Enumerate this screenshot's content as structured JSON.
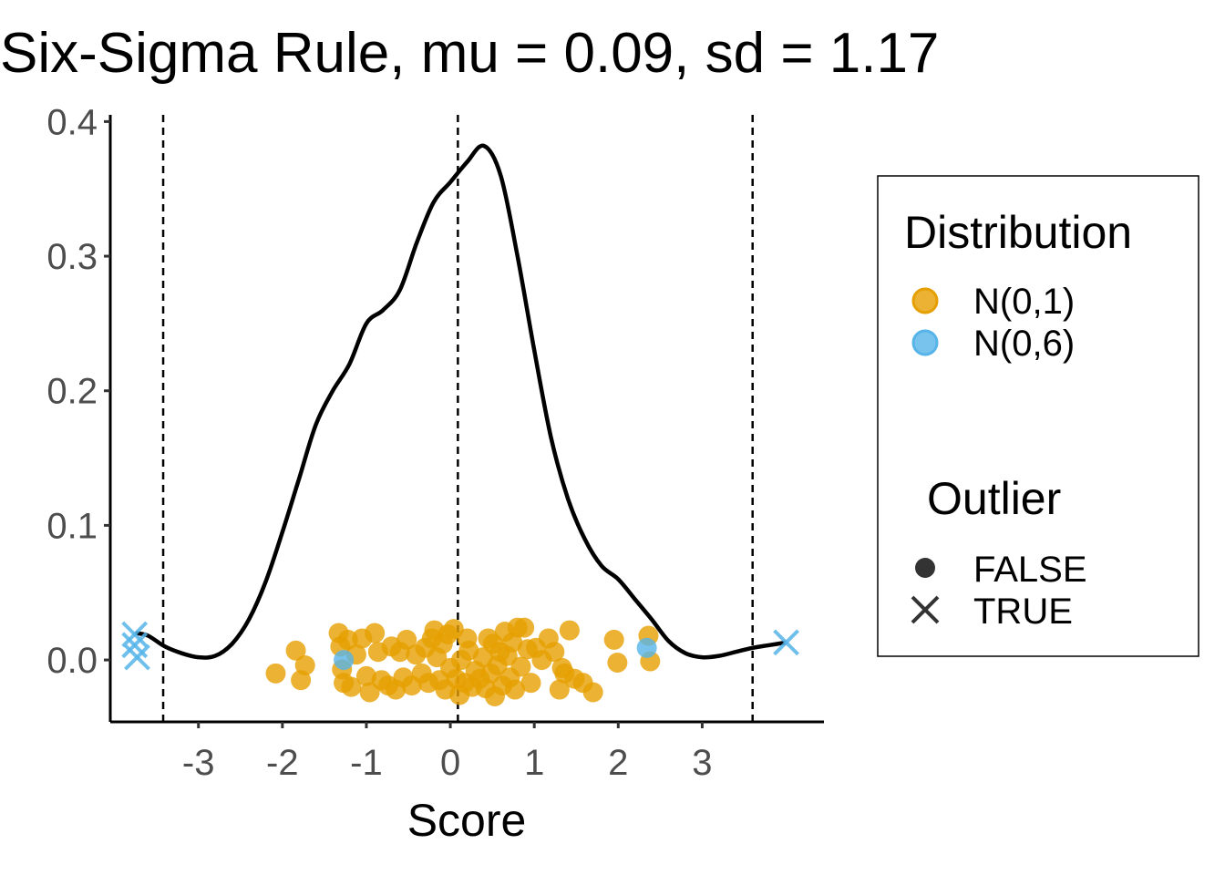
{
  "chart_data": {
    "type": "scatter",
    "title": "Six-Sigma Rule, mu = 0.09, sd = 1.17",
    "xlabel": "Score",
    "ylabel": "",
    "xlim": [
      -4.05,
      4.45
    ],
    "ylim": [
      -0.046,
      0.405
    ],
    "x_ticks": [
      -3,
      -2,
      -1,
      0,
      1,
      2,
      3
    ],
    "y_ticks": [
      0.0,
      0.1,
      0.2,
      0.3,
      0.4
    ],
    "y_tick_labels": [
      "0.0",
      "0.1",
      "0.2",
      "0.3",
      "0.4"
    ],
    "grid": false,
    "vlines": [
      -3.42,
      0.09,
      3.6
    ],
    "density_curve": {
      "x": [
        -3.75,
        -3.6,
        -3.4,
        -3.2,
        -3.0,
        -2.8,
        -2.6,
        -2.4,
        -2.2,
        -2.0,
        -1.8,
        -1.6,
        -1.4,
        -1.2,
        -1.0,
        -0.8,
        -0.6,
        -0.4,
        -0.2,
        0.0,
        0.2,
        0.4,
        0.6,
        0.8,
        1.0,
        1.2,
        1.4,
        1.6,
        1.8,
        2.0,
        2.2,
        2.4,
        2.6,
        2.8,
        3.0,
        3.2,
        3.4,
        3.6,
        3.8,
        4.0
      ],
      "y": [
        0.02,
        0.018,
        0.01,
        0.005,
        0.002,
        0.003,
        0.012,
        0.03,
        0.058,
        0.095,
        0.135,
        0.175,
        0.2,
        0.22,
        0.25,
        0.26,
        0.275,
        0.31,
        0.34,
        0.355,
        0.37,
        0.382,
        0.36,
        0.3,
        0.23,
        0.165,
        0.12,
        0.09,
        0.07,
        0.06,
        0.045,
        0.03,
        0.014,
        0.005,
        0.002,
        0.003,
        0.006,
        0.009,
        0.011,
        0.013
      ]
    },
    "series": [
      {
        "name": "N(0,1)",
        "color": "#E69F00",
        "points": [
          {
            "x": -2.08,
            "y": -0.01,
            "outlier": false
          },
          {
            "x": -1.84,
            "y": 0.007,
            "outlier": false
          },
          {
            "x": -1.78,
            "y": -0.015,
            "outlier": false
          },
          {
            "x": -1.73,
            "y": -0.004,
            "outlier": false
          },
          {
            "x": -1.33,
            "y": 0.02,
            "outlier": false
          },
          {
            "x": -1.31,
            "y": 0.01,
            "outlier": false
          },
          {
            "x": -1.29,
            "y": -0.007,
            "outlier": false
          },
          {
            "x": -1.27,
            "y": -0.017,
            "outlier": false
          },
          {
            "x": -1.22,
            "y": 0.015,
            "outlier": false
          },
          {
            "x": -1.18,
            "y": -0.02,
            "outlier": false
          },
          {
            "x": -1.12,
            "y": 0.004,
            "outlier": false
          },
          {
            "x": -1.05,
            "y": 0.016,
            "outlier": false
          },
          {
            "x": -1.0,
            "y": -0.012,
            "outlier": false
          },
          {
            "x": -0.96,
            "y": -0.024,
            "outlier": false
          },
          {
            "x": -0.9,
            "y": 0.02,
            "outlier": false
          },
          {
            "x": -0.86,
            "y": 0.006,
            "outlier": false
          },
          {
            "x": -0.82,
            "y": -0.015,
            "outlier": false
          },
          {
            "x": -0.74,
            "y": -0.019,
            "outlier": false
          },
          {
            "x": -0.7,
            "y": 0.01,
            "outlier": false
          },
          {
            "x": -0.65,
            "y": -0.022,
            "outlier": false
          },
          {
            "x": -0.6,
            "y": 0.006,
            "outlier": false
          },
          {
            "x": -0.56,
            "y": -0.013,
            "outlier": false
          },
          {
            "x": -0.52,
            "y": 0.015,
            "outlier": false
          },
          {
            "x": -0.46,
            "y": -0.019,
            "outlier": false
          },
          {
            "x": -0.41,
            "y": 0.004,
            "outlier": false
          },
          {
            "x": -0.34,
            "y": -0.01,
            "outlier": false
          },
          {
            "x": -0.3,
            "y": 0.009,
            "outlier": false
          },
          {
            "x": -0.26,
            "y": -0.017,
            "outlier": false
          },
          {
            "x": -0.22,
            "y": 0.016,
            "outlier": false
          },
          {
            "x": -0.19,
            "y": 0.022,
            "outlier": false
          },
          {
            "x": -0.16,
            "y": 0.002,
            "outlier": false
          },
          {
            "x": -0.13,
            "y": -0.015,
            "outlier": false
          },
          {
            "x": -0.09,
            "y": 0.012,
            "outlier": false
          },
          {
            "x": -0.06,
            "y": -0.022,
            "outlier": false
          },
          {
            "x": -0.03,
            "y": 0.019,
            "outlier": false
          },
          {
            "x": 0.0,
            "y": -0.006,
            "outlier": false
          },
          {
            "x": 0.04,
            "y": 0.023,
            "outlier": false
          },
          {
            "x": 0.07,
            "y": -0.014,
            "outlier": false
          },
          {
            "x": 0.11,
            "y": -0.026,
            "outlier": false
          },
          {
            "x": 0.13,
            "y": 0.0,
            "outlier": false
          },
          {
            "x": 0.17,
            "y": -0.017,
            "outlier": false
          },
          {
            "x": 0.2,
            "y": 0.016,
            "outlier": false
          },
          {
            "x": 0.22,
            "y": 0.007,
            "outlier": false
          },
          {
            "x": 0.26,
            "y": -0.02,
            "outlier": false
          },
          {
            "x": 0.3,
            "y": -0.008,
            "outlier": false
          },
          {
            "x": 0.35,
            "y": -0.014,
            "outlier": false
          },
          {
            "x": 0.39,
            "y": 0.002,
            "outlier": false
          },
          {
            "x": 0.42,
            "y": -0.021,
            "outlier": false
          },
          {
            "x": 0.45,
            "y": 0.016,
            "outlier": false
          },
          {
            "x": 0.48,
            "y": -0.01,
            "outlier": false
          },
          {
            "x": 0.51,
            "y": 0.012,
            "outlier": false
          },
          {
            "x": 0.53,
            "y": -0.027,
            "outlier": false
          },
          {
            "x": 0.56,
            "y": -0.004,
            "outlier": false
          },
          {
            "x": 0.59,
            "y": 0.006,
            "outlier": false
          },
          {
            "x": 0.62,
            "y": -0.019,
            "outlier": false
          },
          {
            "x": 0.65,
            "y": 0.021,
            "outlier": false
          },
          {
            "x": 0.68,
            "y": 0.003,
            "outlier": false
          },
          {
            "x": 0.71,
            "y": -0.013,
            "outlier": false
          },
          {
            "x": 0.74,
            "y": 0.013,
            "outlier": false
          },
          {
            "x": 0.77,
            "y": -0.022,
            "outlier": false
          },
          {
            "x": 0.8,
            "y": 0.024,
            "outlier": false
          },
          {
            "x": 0.84,
            "y": -0.005,
            "outlier": false
          },
          {
            "x": 0.88,
            "y": 0.024,
            "outlier": false
          },
          {
            "x": 0.92,
            "y": 0.008,
            "outlier": false
          },
          {
            "x": 0.96,
            "y": -0.017,
            "outlier": false
          },
          {
            "x": 1.02,
            "y": 0.009,
            "outlier": false
          },
          {
            "x": 1.09,
            "y": 0.0,
            "outlier": false
          },
          {
            "x": 1.17,
            "y": 0.016,
            "outlier": false
          },
          {
            "x": 1.24,
            "y": 0.006,
            "outlier": false
          },
          {
            "x": 1.3,
            "y": -0.022,
            "outlier": false
          },
          {
            "x": 1.33,
            "y": -0.006,
            "outlier": false
          },
          {
            "x": 1.36,
            "y": -0.01,
            "outlier": false
          },
          {
            "x": 1.42,
            "y": 0.022,
            "outlier": false
          },
          {
            "x": 1.48,
            "y": -0.014,
            "outlier": false
          },
          {
            "x": 1.58,
            "y": -0.017,
            "outlier": false
          },
          {
            "x": 1.7,
            "y": -0.024,
            "outlier": false
          },
          {
            "x": 1.95,
            "y": 0.015,
            "outlier": false
          },
          {
            "x": 1.99,
            "y": -0.002,
            "outlier": false
          },
          {
            "x": 2.36,
            "y": 0.018,
            "outlier": false
          },
          {
            "x": 2.38,
            "y": -0.001,
            "outlier": false
          }
        ]
      },
      {
        "name": "N(0,6)",
        "color": "#56B4E9",
        "points": [
          {
            "x": -1.27,
            "y": 0.0,
            "outlier": false
          },
          {
            "x": 2.34,
            "y": 0.009,
            "outlier": false
          },
          {
            "x": -3.76,
            "y": 0.019,
            "outlier": true
          },
          {
            "x": -3.76,
            "y": 0.011,
            "outlier": true
          },
          {
            "x": -3.73,
            "y": 0.002,
            "outlier": true
          },
          {
            "x": 4.0,
            "y": 0.013,
            "outlier": true
          }
        ]
      }
    ],
    "legend": {
      "position": "right",
      "distribution_title": "Distribution",
      "distribution_items": [
        "N(0,1)",
        "N(0,6)"
      ],
      "outlier_title": "Outlier",
      "outlier_items": [
        "FALSE",
        "TRUE"
      ]
    }
  }
}
